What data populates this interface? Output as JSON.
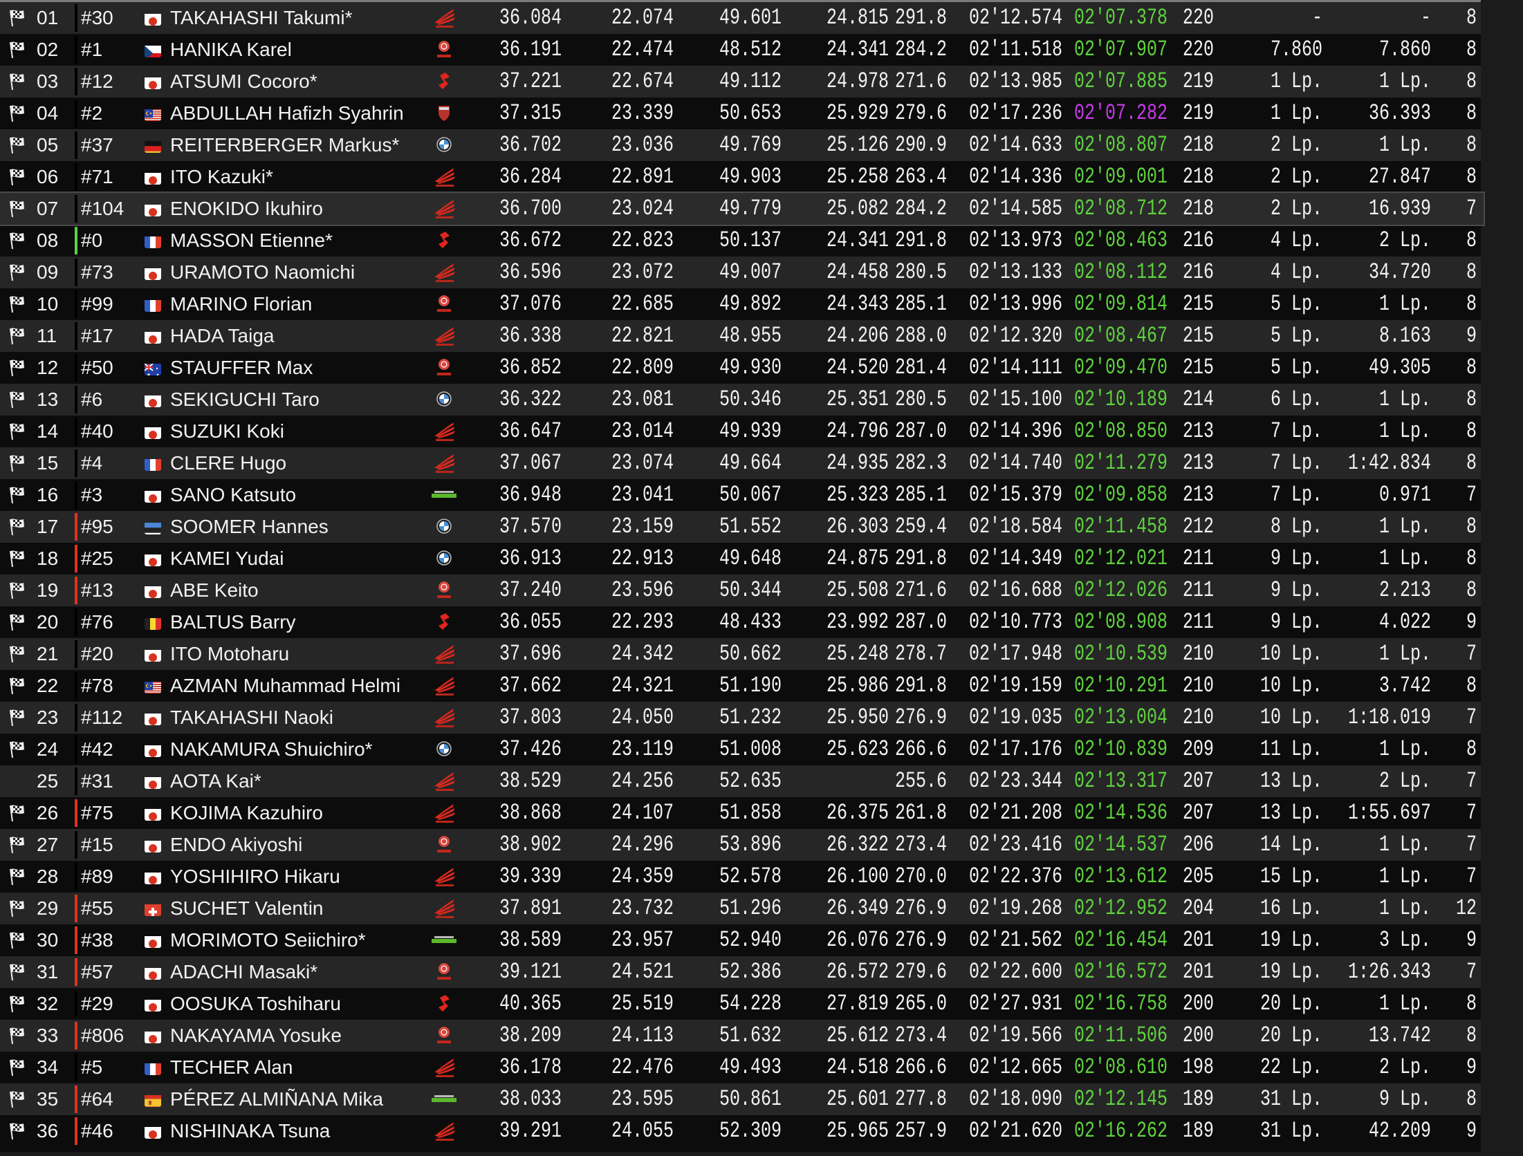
{
  "colors": {
    "best_lap": "#5fd23f",
    "session_best": "#c83aea",
    "bar_red": "#e0321e",
    "bar_green": "#5fd23f",
    "bar_none": "#000000"
  },
  "rows": [
    {
      "pos": "01",
      "num": "#30",
      "country": "JP",
      "name": "TAKAHASHI Takumi*",
      "make": "honda",
      "s1": "36.084",
      "s2": "22.074",
      "s3": "49.601",
      "s4": "24.815",
      "speed": "291.8",
      "last": "02'12.574",
      "best": "02'07.378",
      "laps": "220",
      "gap": "-",
      "interval": "-",
      "pits": "8",
      "flag": true,
      "bar": "none"
    },
    {
      "pos": "02",
      "num": "#1",
      "country": "CZ",
      "name": "HANIKA Karel",
      "make": "yamaha",
      "s1": "36.191",
      "s2": "22.474",
      "s3": "48.512",
      "s4": "24.341",
      "speed": "284.2",
      "last": "02'11.518",
      "best": "02'07.907",
      "laps": "220",
      "gap": "7.860",
      "interval": "7.860",
      "pits": "8",
      "flag": true,
      "bar": "none"
    },
    {
      "pos": "03",
      "num": "#12",
      "country": "JP",
      "name": "ATSUMI Cocoro*",
      "make": "suzuki",
      "s1": "37.221",
      "s2": "22.674",
      "s3": "49.112",
      "s4": "24.978",
      "speed": "271.6",
      "last": "02'13.985",
      "best": "02'07.885",
      "laps": "219",
      "gap": "1 Lp.",
      "interval": "1 Lp.",
      "pits": "8",
      "flag": true,
      "bar": "none"
    },
    {
      "pos": "04",
      "num": "#2",
      "country": "MY",
      "name": "ABDULLAH Hafizh Syahrin",
      "make": "ducati",
      "s1": "37.315",
      "s2": "23.339",
      "s3": "50.653",
      "s4": "25.929",
      "speed": "279.6",
      "last": "02'17.236",
      "best": "02'07.282",
      "best_overall": true,
      "laps": "219",
      "gap": "1 Lp.",
      "interval": "36.393",
      "pits": "8",
      "flag": true,
      "bar": "none"
    },
    {
      "pos": "05",
      "num": "#37",
      "country": "DE",
      "name": "REITERBERGER Markus*",
      "make": "bmw",
      "s1": "36.702",
      "s2": "23.036",
      "s3": "49.769",
      "s4": "25.126",
      "speed": "290.9",
      "last": "02'14.633",
      "best": "02'08.807",
      "laps": "218",
      "gap": "2 Lp.",
      "interval": "1 Lp.",
      "pits": "8",
      "flag": true,
      "bar": "none"
    },
    {
      "pos": "06",
      "num": "#71",
      "country": "JP",
      "name": "ITO Kazuki*",
      "make": "honda",
      "s1": "36.284",
      "s2": "22.891",
      "s3": "49.903",
      "s4": "25.258",
      "speed": "263.4",
      "last": "02'14.336",
      "best": "02'09.001",
      "laps": "218",
      "gap": "2 Lp.",
      "interval": "27.847",
      "pits": "8",
      "flag": true,
      "bar": "none"
    },
    {
      "pos": "07",
      "num": "#104",
      "country": "JP",
      "name": "ENOKIDO Ikuhiro",
      "make": "honda",
      "s1": "36.700",
      "s2": "23.024",
      "s3": "49.779",
      "s4": "25.082",
      "speed": "284.2",
      "last": "02'14.585",
      "best": "02'08.712",
      "laps": "218",
      "gap": "2 Lp.",
      "interval": "16.939",
      "pits": "7",
      "flag": true,
      "bar": "none",
      "selected": true
    },
    {
      "pos": "08",
      "num": "#0",
      "country": "FR",
      "name": "MASSON Etienne*",
      "make": "suzuki",
      "s1": "36.672",
      "s2": "22.823",
      "s3": "50.137",
      "s4": "24.341",
      "speed": "291.8",
      "last": "02'13.973",
      "best": "02'08.463",
      "laps": "216",
      "gap": "4 Lp.",
      "interval": "2 Lp.",
      "pits": "8",
      "flag": true,
      "bar": "green"
    },
    {
      "pos": "09",
      "num": "#73",
      "country": "JP",
      "name": "URAMOTO Naomichi",
      "make": "honda",
      "s1": "36.596",
      "s2": "23.072",
      "s3": "49.007",
      "s4": "24.458",
      "speed": "280.5",
      "last": "02'13.133",
      "best": "02'08.112",
      "laps": "216",
      "gap": "4 Lp.",
      "interval": "34.720",
      "pits": "8",
      "flag": true,
      "bar": "none"
    },
    {
      "pos": "10",
      "num": "#99",
      "country": "FR",
      "name": "MARINO Florian",
      "make": "yamaha",
      "s1": "37.076",
      "s2": "22.685",
      "s3": "49.892",
      "s4": "24.343",
      "speed": "285.1",
      "last": "02'13.996",
      "best": "02'09.814",
      "laps": "215",
      "gap": "5 Lp.",
      "interval": "1 Lp.",
      "pits": "8",
      "flag": true,
      "bar": "none"
    },
    {
      "pos": "11",
      "num": "#17",
      "country": "JP",
      "name": "HADA Taiga",
      "make": "honda",
      "s1": "36.338",
      "s2": "22.821",
      "s3": "48.955",
      "s4": "24.206",
      "speed": "288.0",
      "last": "02'12.320",
      "best": "02'08.467",
      "laps": "215",
      "gap": "5 Lp.",
      "interval": "8.163",
      "pits": "9",
      "flag": true,
      "bar": "none"
    },
    {
      "pos": "12",
      "num": "#50",
      "country": "AU",
      "name": "STAUFFER Max",
      "make": "yamaha",
      "s1": "36.852",
      "s2": "22.809",
      "s3": "49.930",
      "s4": "24.520",
      "speed": "281.4",
      "last": "02'14.111",
      "best": "02'09.470",
      "laps": "215",
      "gap": "5 Lp.",
      "interval": "49.305",
      "pits": "8",
      "flag": true,
      "bar": "none"
    },
    {
      "pos": "13",
      "num": "#6",
      "country": "JP",
      "name": "SEKIGUCHI Taro",
      "make": "bmw",
      "s1": "36.322",
      "s2": "23.081",
      "s3": "50.346",
      "s4": "25.351",
      "speed": "280.5",
      "last": "02'15.100",
      "best": "02'10.189",
      "laps": "214",
      "gap": "6 Lp.",
      "interval": "1 Lp.",
      "pits": "8",
      "flag": true,
      "bar": "none"
    },
    {
      "pos": "14",
      "num": "#40",
      "country": "JP",
      "name": "SUZUKI Koki",
      "make": "honda",
      "s1": "36.647",
      "s2": "23.014",
      "s3": "49.939",
      "s4": "24.796",
      "speed": "287.0",
      "last": "02'14.396",
      "best": "02'08.850",
      "laps": "213",
      "gap": "7 Lp.",
      "interval": "1 Lp.",
      "pits": "8",
      "flag": true,
      "bar": "none"
    },
    {
      "pos": "15",
      "num": "#4",
      "country": "FR",
      "name": "CLERE Hugo",
      "make": "honda",
      "s1": "37.067",
      "s2": "23.074",
      "s3": "49.664",
      "s4": "24.935",
      "speed": "282.3",
      "last": "02'14.740",
      "best": "02'11.279",
      "laps": "213",
      "gap": "7 Lp.",
      "interval": "1:42.834",
      "pits": "8",
      "flag": true,
      "bar": "none"
    },
    {
      "pos": "16",
      "num": "#3",
      "country": "JP",
      "name": "SANO Katsuto",
      "make": "kawasaki",
      "s1": "36.948",
      "s2": "23.041",
      "s3": "50.067",
      "s4": "25.323",
      "speed": "285.1",
      "last": "02'15.379",
      "best": "02'09.858",
      "laps": "213",
      "gap": "7 Lp.",
      "interval": "0.971",
      "pits": "7",
      "flag": true,
      "bar": "none"
    },
    {
      "pos": "17",
      "num": "#95",
      "country": "EE",
      "name": "SOOMER Hannes",
      "make": "bmw",
      "s1": "37.570",
      "s2": "23.159",
      "s3": "51.552",
      "s4": "26.303",
      "speed": "259.4",
      "last": "02'18.584",
      "best": "02'11.458",
      "laps": "212",
      "gap": "8 Lp.",
      "interval": "1 Lp.",
      "pits": "8",
      "flag": true,
      "bar": "red"
    },
    {
      "pos": "18",
      "num": "#25",
      "country": "JP",
      "name": "KAMEI Yudai",
      "make": "bmw",
      "s1": "36.913",
      "s2": "22.913",
      "s3": "49.648",
      "s4": "24.875",
      "speed": "291.8",
      "last": "02'14.349",
      "best": "02'12.021",
      "laps": "211",
      "gap": "9 Lp.",
      "interval": "1 Lp.",
      "pits": "8",
      "flag": true,
      "bar": "red"
    },
    {
      "pos": "19",
      "num": "#13",
      "country": "JP",
      "name": "ABE Keito",
      "make": "yamaha",
      "s1": "37.240",
      "s2": "23.596",
      "s3": "50.344",
      "s4": "25.508",
      "speed": "271.6",
      "last": "02'16.688",
      "best": "02'12.026",
      "laps": "211",
      "gap": "9 Lp.",
      "interval": "2.213",
      "pits": "8",
      "flag": true,
      "bar": "red"
    },
    {
      "pos": "20",
      "num": "#76",
      "country": "BE",
      "name": "BALTUS Barry",
      "make": "suzuki",
      "s1": "36.055",
      "s2": "22.293",
      "s3": "48.433",
      "s4": "23.992",
      "speed": "287.0",
      "last": "02'10.773",
      "best": "02'08.908",
      "laps": "211",
      "gap": "9 Lp.",
      "interval": "4.022",
      "pits": "9",
      "flag": true,
      "bar": "none"
    },
    {
      "pos": "21",
      "num": "#20",
      "country": "JP",
      "name": "ITO Motoharu",
      "make": "honda",
      "s1": "37.696",
      "s2": "24.342",
      "s3": "50.662",
      "s4": "25.248",
      "speed": "278.7",
      "last": "02'17.948",
      "best": "02'10.539",
      "laps": "210",
      "gap": "10 Lp.",
      "interval": "1 Lp.",
      "pits": "7",
      "flag": true,
      "bar": "none"
    },
    {
      "pos": "22",
      "num": "#78",
      "country": "MY",
      "name": "AZMAN Muhammad Helmi",
      "make": "honda",
      "s1": "37.662",
      "s2": "24.321",
      "s3": "51.190",
      "s4": "25.986",
      "speed": "291.8",
      "last": "02'19.159",
      "best": "02'10.291",
      "laps": "210",
      "gap": "10 Lp.",
      "interval": "3.742",
      "pits": "8",
      "flag": true,
      "bar": "none"
    },
    {
      "pos": "23",
      "num": "#112",
      "country": "JP",
      "name": "TAKAHASHI Naoki",
      "make": "honda",
      "s1": "37.803",
      "s2": "24.050",
      "s3": "51.232",
      "s4": "25.950",
      "speed": "276.9",
      "last": "02'19.035",
      "best": "02'13.004",
      "laps": "210",
      "gap": "10 Lp.",
      "interval": "1:18.019",
      "pits": "7",
      "flag": true,
      "bar": "none"
    },
    {
      "pos": "24",
      "num": "#42",
      "country": "JP",
      "name": "NAKAMURA Shuichiro*",
      "make": "bmw",
      "s1": "37.426",
      "s2": "23.119",
      "s3": "51.008",
      "s4": "25.623",
      "speed": "266.6",
      "last": "02'17.176",
      "best": "02'10.839",
      "laps": "209",
      "gap": "11 Lp.",
      "interval": "1 Lp.",
      "pits": "8",
      "flag": true,
      "bar": "none"
    },
    {
      "pos": "25",
      "num": "#31",
      "country": "JP",
      "name": "AOTA Kai*",
      "make": "honda",
      "s1": "38.529",
      "s2": "24.256",
      "s3": "52.635",
      "s4": "",
      "speed": "255.6",
      "last": "02'23.344",
      "best": "02'13.317",
      "laps": "207",
      "gap": "13 Lp.",
      "interval": "2 Lp.",
      "pits": "7",
      "flag": false,
      "bar": "none"
    },
    {
      "pos": "26",
      "num": "#75",
      "country": "JP",
      "name": "KOJIMA Kazuhiro",
      "make": "honda",
      "s1": "38.868",
      "s2": "24.107",
      "s3": "51.858",
      "s4": "26.375",
      "speed": "261.8",
      "last": "02'21.208",
      "best": "02'14.536",
      "laps": "207",
      "gap": "13 Lp.",
      "interval": "1:55.697",
      "pits": "7",
      "flag": true,
      "bar": "red"
    },
    {
      "pos": "27",
      "num": "#15",
      "country": "JP",
      "name": "ENDO Akiyoshi",
      "make": "yamaha",
      "s1": "38.902",
      "s2": "24.296",
      "s3": "53.896",
      "s4": "26.322",
      "speed": "273.4",
      "last": "02'23.416",
      "best": "02'14.537",
      "laps": "206",
      "gap": "14 Lp.",
      "interval": "1 Lp.",
      "pits": "7",
      "flag": true,
      "bar": "none"
    },
    {
      "pos": "28",
      "num": "#89",
      "country": "JP",
      "name": "YOSHIHIRO Hikaru",
      "make": "honda",
      "s1": "39.339",
      "s2": "24.359",
      "s3": "52.578",
      "s4": "26.100",
      "speed": "270.0",
      "last": "02'22.376",
      "best": "02'13.612",
      "laps": "205",
      "gap": "15 Lp.",
      "interval": "1 Lp.",
      "pits": "7",
      "flag": true,
      "bar": "none"
    },
    {
      "pos": "29",
      "num": "#55",
      "country": "CH",
      "name": "SUCHET Valentin",
      "make": "honda",
      "s1": "37.891",
      "s2": "23.732",
      "s3": "51.296",
      "s4": "26.349",
      "speed": "276.9",
      "last": "02'19.268",
      "best": "02'12.952",
      "laps": "204",
      "gap": "16 Lp.",
      "interval": "1 Lp.",
      "pits": "12",
      "flag": true,
      "bar": "red"
    },
    {
      "pos": "30",
      "num": "#38",
      "country": "JP",
      "name": "MORIMOTO Seiichiro*",
      "make": "kawasaki",
      "s1": "38.589",
      "s2": "23.957",
      "s3": "52.940",
      "s4": "26.076",
      "speed": "276.9",
      "last": "02'21.562",
      "best": "02'16.454",
      "laps": "201",
      "gap": "19 Lp.",
      "interval": "3 Lp.",
      "pits": "9",
      "flag": true,
      "bar": "red"
    },
    {
      "pos": "31",
      "num": "#57",
      "country": "JP",
      "name": "ADACHI Masaki*",
      "make": "yamaha",
      "s1": "39.121",
      "s2": "24.521",
      "s3": "52.386",
      "s4": "26.572",
      "speed": "279.6",
      "last": "02'22.600",
      "best": "02'16.572",
      "laps": "201",
      "gap": "19 Lp.",
      "interval": "1:26.343",
      "pits": "7",
      "flag": true,
      "bar": "red"
    },
    {
      "pos": "32",
      "num": "#29",
      "country": "JP",
      "name": "OOSUKA Toshiharu",
      "make": "suzuki",
      "s1": "40.365",
      "s2": "25.519",
      "s3": "54.228",
      "s4": "27.819",
      "speed": "265.0",
      "last": "02'27.931",
      "best": "02'16.758",
      "laps": "200",
      "gap": "20 Lp.",
      "interval": "1 Lp.",
      "pits": "8",
      "flag": true,
      "bar": "none"
    },
    {
      "pos": "33",
      "num": "#806",
      "country": "JP",
      "name": "NAKAYAMA Yosuke",
      "make": "yamaha",
      "s1": "38.209",
      "s2": "24.113",
      "s3": "51.632",
      "s4": "25.612",
      "speed": "273.4",
      "last": "02'19.566",
      "best": "02'11.506",
      "laps": "200",
      "gap": "20 Lp.",
      "interval": "13.742",
      "pits": "8",
      "flag": true,
      "bar": "red"
    },
    {
      "pos": "34",
      "num": "#5",
      "country": "FR",
      "name": "TECHER Alan",
      "make": "honda",
      "s1": "36.178",
      "s2": "22.476",
      "s3": "49.493",
      "s4": "24.518",
      "speed": "266.6",
      "last": "02'12.665",
      "best": "02'08.610",
      "laps": "198",
      "gap": "22 Lp.",
      "interval": "2 Lp.",
      "pits": "9",
      "flag": true,
      "bar": "none"
    },
    {
      "pos": "35",
      "num": "#64",
      "country": "ES",
      "name": "PÉREZ ALMIÑANA Mika",
      "make": "kawasaki",
      "s1": "38.033",
      "s2": "23.595",
      "s3": "50.861",
      "s4": "25.601",
      "speed": "277.8",
      "last": "02'18.090",
      "best": "02'12.145",
      "laps": "189",
      "gap": "31 Lp.",
      "interval": "9 Lp.",
      "pits": "8",
      "flag": true,
      "bar": "red"
    },
    {
      "pos": "36",
      "num": "#46",
      "country": "JP",
      "name": "NISHINAKA Tsuna",
      "make": "honda",
      "s1": "39.291",
      "s2": "24.055",
      "s3": "52.309",
      "s4": "25.965",
      "speed": "257.9",
      "last": "02'21.620",
      "best": "02'16.262",
      "laps": "189",
      "gap": "31 Lp.",
      "interval": "42.209",
      "pits": "9",
      "flag": true,
      "bar": "red"
    }
  ]
}
